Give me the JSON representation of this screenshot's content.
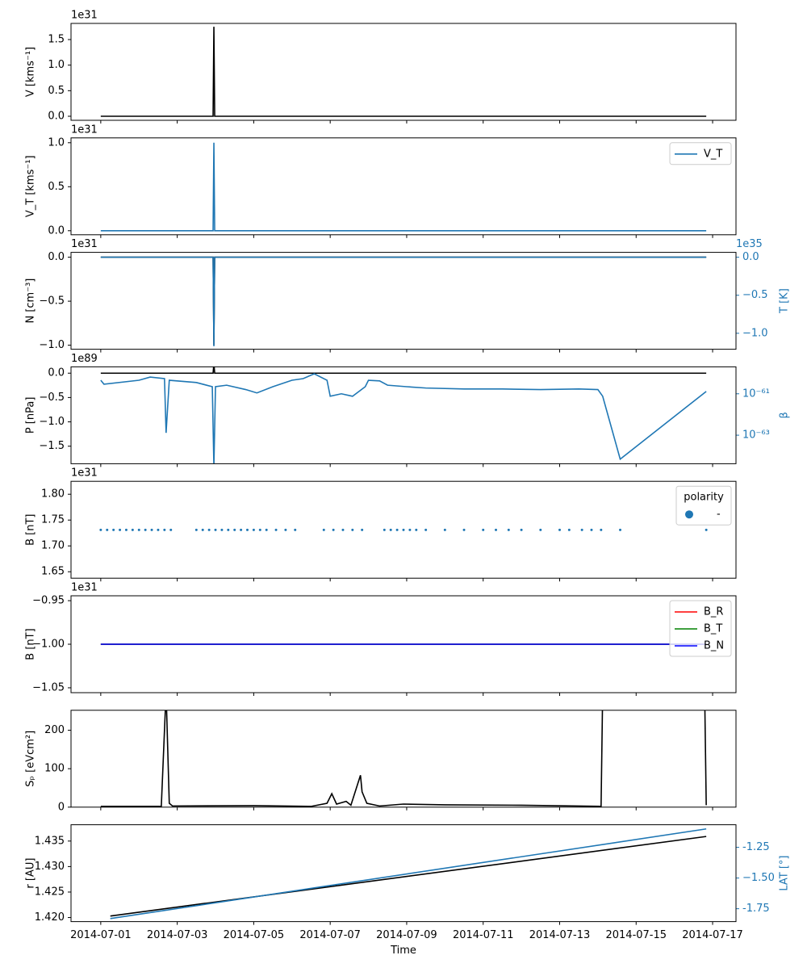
{
  "chart_data": [
    {
      "type": "line",
      "offset": "1e31",
      "ylabel": "V [kms⁻¹]",
      "ylim": [
        -0.079,
        1.816
      ],
      "yticks": [
        {
          "value": 0,
          "label": "0.0"
        },
        {
          "value": 0.5,
          "label": "0.5"
        },
        {
          "value": 1,
          "label": "1.0"
        },
        {
          "value": 1.5,
          "label": "1.5"
        }
      ],
      "series": [
        {
          "color": "#000000",
          "x": [
            "2014-07-01T00:00",
            "2014-07-03T22:30",
            "2014-07-03T23:00",
            "2014-07-03T23:30",
            "2014-07-16T20:00"
          ],
          "values": [
            0,
            0,
            1.75,
            0,
            0
          ]
        }
      ]
    },
    {
      "type": "line",
      "offset": "1e31",
      "ylabel": "V_T [kms⁻¹]",
      "ylim": [
        -0.046,
        1.055
      ],
      "legend": "upper right",
      "yticks": [
        {
          "value": 0,
          "label": "0.0"
        },
        {
          "value": 0.5,
          "label": "0.5"
        },
        {
          "value": 1,
          "label": "1.0"
        }
      ],
      "series": [
        {
          "name": "V_T",
          "color": "#1f77b4",
          "x": [
            "2014-07-01T00:00",
            "2014-07-03T22:30",
            "2014-07-03T23:00",
            "2014-07-03T23:30",
            "2014-07-16T20:00"
          ],
          "values": [
            0,
            0,
            1.0,
            0,
            0
          ]
        }
      ]
    },
    {
      "type": "line",
      "offset": "1e31",
      "ylabel": "N [cm⁻³]",
      "ylim": [
        -1.046,
        0.055
      ],
      "yticks": [
        {
          "value": -1,
          "label": "−1.0"
        },
        {
          "value": -0.5,
          "label": "−0.5"
        },
        {
          "value": 0,
          "label": "0.0"
        }
      ],
      "y2offset": "1e35",
      "y2label": "T [K]",
      "y2lim": [
        -1.21,
        0.064
      ],
      "y2ticks": [
        {
          "value": -1,
          "label": "−1.0"
        },
        {
          "value": -0.5,
          "label": "−0.5"
        },
        {
          "value": 0,
          "label": "0.0"
        }
      ],
      "series": [
        {
          "color": "#000000",
          "x": [
            "2014-07-01T00:00",
            "2014-07-03T22:30",
            "2014-07-03T23:00",
            "2014-07-03T23:30",
            "2014-07-16T20:00"
          ],
          "values": [
            0,
            0,
            -1.0,
            0,
            0
          ]
        },
        {
          "color": "#1f77b4",
          "axis": "y2",
          "x": [
            "2014-07-01T00:00",
            "2014-07-03T22:30",
            "2014-07-03T23:00",
            "2014-07-03T23:30",
            "2014-07-16T20:00"
          ],
          "values": [
            0,
            0,
            -1.17,
            0,
            0
          ]
        }
      ]
    },
    {
      "type": "line",
      "offset": "1e89",
      "ylabel": "P [nPa]",
      "ylim": [
        -1.86,
        0.13
      ],
      "yticks": [
        {
          "value": -1.5,
          "label": "−1.5"
        },
        {
          "value": -1,
          "label": "−1.0"
        },
        {
          "value": -0.5,
          "label": "−0.5"
        },
        {
          "value": 0,
          "label": "0.0"
        }
      ],
      "y2label": "β",
      "y2log": true,
      "y2lim": [
        4.2e-65,
        2e-60
      ],
      "y2ticks": [
        {
          "value": 1e-63,
          "label": "10⁻⁶³"
        },
        {
          "value": 1e-61,
          "label": "10⁻⁶¹"
        }
      ],
      "series": [
        {
          "color": "#000000",
          "x": [
            "2014-07-01T00:00",
            "2014-07-03T22:30",
            "2014-07-03T23:00",
            "2014-07-03T23:30",
            "2014-07-16T20:00"
          ],
          "values": [
            0,
            0,
            0.2,
            0,
            0
          ]
        },
        {
          "color": "#1f77b4",
          "axis": "y2",
          "x": [
            "2014-07-01T00:00",
            "2014-07-01T02:00",
            "2014-07-02T00:00",
            "2014-07-02T07:00",
            "2014-07-02T16:00",
            "2014-07-02T17:00",
            "2014-07-02T19:00",
            "2014-07-03T12:00",
            "2014-07-03T22:00",
            "2014-07-03T23:00",
            "2014-07-04T00:00",
            "2014-07-04T07:00",
            "2014-07-04T19:00",
            "2014-07-05T02:00",
            "2014-07-05T12:00",
            "2014-07-06T00:00",
            "2014-07-06T07:00",
            "2014-07-06T14:00",
            "2014-07-06T22:00",
            "2014-07-07T00:00",
            "2014-07-07T07:00",
            "2014-07-07T14:00",
            "2014-07-07T22:00",
            "2014-07-08T00:00",
            "2014-07-08T07:00",
            "2014-07-08T12:00",
            "2014-07-09T00:00",
            "2014-07-09T12:00",
            "2014-07-10T12:00",
            "2014-07-11T12:00",
            "2014-07-12T12:00",
            "2014-07-13T12:00",
            "2014-07-14T00:00",
            "2014-07-14T03:00",
            "2014-07-14T14:00",
            "2014-07-16T20:00"
          ],
          "values": [
            4.5e-61,
            2.9e-61,
            4.5e-61,
            6.4e-61,
            5.4e-61,
            1.3e-63,
            4.5e-61,
            3.5e-61,
            2.2e-61,
            3e-65,
            2.2e-61,
            2.6e-61,
            1.6e-61,
            1.1e-61,
            2.2e-61,
            4.5e-61,
            5.4e-61,
            9.2e-61,
            4.5e-61,
            7.6e-62,
            1e-61,
            7.6e-62,
            2.2e-61,
            4.5e-61,
            4.2e-61,
            2.6e-61,
            2.2e-61,
            1.9e-61,
            1.7e-61,
            1.7e-61,
            1.6e-61,
            1.7e-61,
            1.6e-61,
            7.6e-62,
            7e-65,
            1.3e-61
          ]
        }
      ]
    },
    {
      "type": "scatter",
      "offset": "1e31",
      "ylabel": "B [nT]",
      "ylim": [
        1.6375,
        1.825
      ],
      "legend": "upper right",
      "legend_title": "polarity",
      "yticks": [
        1.65,
        {
          "value": 1.7,
          "label": "1.70"
        },
        1.75,
        {
          "value": 1.8,
          "label": "1.80"
        }
      ],
      "series": [
        {
          "name": "-",
          "color": "#1f77b4",
          "x": [
            "2014-07-01T00:00",
            "2014-07-01T04:00",
            "2014-07-01T08:00",
            "2014-07-01T12:00",
            "2014-07-01T16:00",
            "2014-07-01T20:00",
            "2014-07-02T00:00",
            "2014-07-02T04:00",
            "2014-07-02T08:00",
            "2014-07-02T12:00",
            "2014-07-02T16:00",
            "2014-07-02T20:00",
            "2014-07-03T12:00",
            "2014-07-03T16:00",
            "2014-07-03T20:00",
            "2014-07-04T00:00",
            "2014-07-04T04:00",
            "2014-07-04T08:00",
            "2014-07-04T12:00",
            "2014-07-04T16:00",
            "2014-07-04T20:00",
            "2014-07-05T00:00",
            "2014-07-05T04:00",
            "2014-07-05T08:00",
            "2014-07-05T14:00",
            "2014-07-05T20:00",
            "2014-07-06T02:00",
            "2014-07-06T20:00",
            "2014-07-07T02:00",
            "2014-07-07T08:00",
            "2014-07-07T14:00",
            "2014-07-07T20:00",
            "2014-07-08T10:00",
            "2014-07-08T14:00",
            "2014-07-08T18:00",
            "2014-07-08T22:00",
            "2014-07-09T02:00",
            "2014-07-09T06:00",
            "2014-07-09T12:00",
            "2014-07-10T00:00",
            "2014-07-10T12:00",
            "2014-07-11T00:00",
            "2014-07-11T08:00",
            "2014-07-11T16:00",
            "2014-07-12T00:00",
            "2014-07-12T12:00",
            "2014-07-13T00:00",
            "2014-07-13T06:00",
            "2014-07-13T14:00",
            "2014-07-13T20:00",
            "2014-07-14T02:00",
            "2014-07-14T14:00",
            "2014-07-16T20:00"
          ],
          "values": [
            1.731,
            1.731,
            1.731,
            1.731,
            1.731,
            1.731,
            1.731,
            1.731,
            1.731,
            1.731,
            1.731,
            1.731,
            1.731,
            1.731,
            1.731,
            1.731,
            1.731,
            1.731,
            1.731,
            1.731,
            1.731,
            1.731,
            1.731,
            1.731,
            1.731,
            1.731,
            1.731,
            1.731,
            1.731,
            1.731,
            1.731,
            1.731,
            1.731,
            1.731,
            1.731,
            1.731,
            1.731,
            1.731,
            1.731,
            1.731,
            1.731,
            1.731,
            1.731,
            1.731,
            1.731,
            1.731,
            1.731,
            1.731,
            1.731,
            1.731,
            1.731,
            1.731,
            1.731
          ]
        }
      ]
    },
    {
      "type": "line",
      "offset": "1e31",
      "ylabel": "B [nT]",
      "ylim": [
        -1.0556,
        -0.9444
      ],
      "legend": "upper right",
      "yticks": [
        {
          "value": -1.05,
          "label": "−1.05"
        },
        {
          "value": -1.0,
          "label": "−1.00"
        },
        {
          "value": -0.95,
          "label": "−0.95"
        }
      ],
      "series": [
        {
          "name": "B_R",
          "color": "#ff0000",
          "x": [
            "2014-07-01T00:00",
            "2014-07-16T20:00"
          ],
          "values": [
            -1.0,
            -1.0
          ]
        },
        {
          "name": "B_T",
          "color": "#008000",
          "x": [
            "2014-07-01T00:00",
            "2014-07-16T20:00"
          ],
          "values": [
            -1.0,
            -1.0
          ]
        },
        {
          "name": "B_N",
          "color": "#0000ff",
          "x": [
            "2014-07-01T00:00",
            "2014-07-16T20:00"
          ],
          "values": [
            -1.0,
            -1.0
          ]
        }
      ]
    },
    {
      "type": "line",
      "ylabel": "Sₚ [eVcm²]",
      "ylim": [
        0,
        252
      ],
      "yticks": [
        0,
        100,
        200
      ],
      "series": [
        {
          "color": "#000000",
          "x": [
            "2014-07-01T00:00",
            "2014-07-02T14:00",
            "2014-07-02T17:00",
            "2014-07-02T19:00",
            "2014-07-02T21:00",
            "2014-07-05T00:00",
            "2014-07-06T12:00",
            "2014-07-06T22:00",
            "2014-07-07T01:00",
            "2014-07-07T04:00",
            "2014-07-07T10:00",
            "2014-07-07T13:00",
            "2014-07-07T19:00",
            "2014-07-07T20:00",
            "2014-07-07T23:00",
            "2014-07-08T07:00",
            "2014-07-08T22:00",
            "2014-07-10T00:00",
            "2014-07-12T00:00",
            "2014-07-14T02:00",
            "2014-07-14T03:00",
            "2014-07-16T19:00",
            "2014-07-16T20:00"
          ],
          "values": [
            2,
            2,
            300,
            10,
            3,
            4,
            2,
            10,
            35,
            8,
            15,
            5,
            83,
            40,
            10,
            3,
            8,
            6,
            5,
            2,
            300,
            300,
            5
          ]
        }
      ]
    },
    {
      "type": "line",
      "ylabel": "r [AU]",
      "ylim": [
        1.4192,
        1.4382
      ],
      "yticks": [
        {
          "value": 1.42,
          "label": "1.420"
        },
        1.425,
        {
          "value": 1.43,
          "label": "1.430"
        },
        1.435
      ],
      "y2label": "LAT [°]",
      "y2lim": [
        -1.855,
        -1.066
      ],
      "y2ticks": [
        -1.75,
        {
          "value": -1.5,
          "label": "−1.50"
        },
        -1.25
      ],
      "xlabel": "Time",
      "xlim": [
        "2014-06-30T05:20",
        "2014-07-17T14:40"
      ],
      "xticks": [
        "2014-07-01",
        "2014-07-03",
        "2014-07-05",
        "2014-07-07",
        "2014-07-09",
        "2014-07-11",
        "2014-07-13",
        "2014-07-15",
        "2014-07-17"
      ],
      "series": [
        {
          "color": "#000000",
          "x": [
            "2014-07-01T06:00",
            "2014-07-16T20:00"
          ],
          "values": [
            1.4203,
            1.4359
          ]
        },
        {
          "color": "#1f77b4",
          "axis": "y2",
          "x": [
            "2014-07-01T06:00",
            "2014-07-16T20:00"
          ],
          "values": [
            -1.83,
            -1.1
          ]
        }
      ]
    }
  ]
}
